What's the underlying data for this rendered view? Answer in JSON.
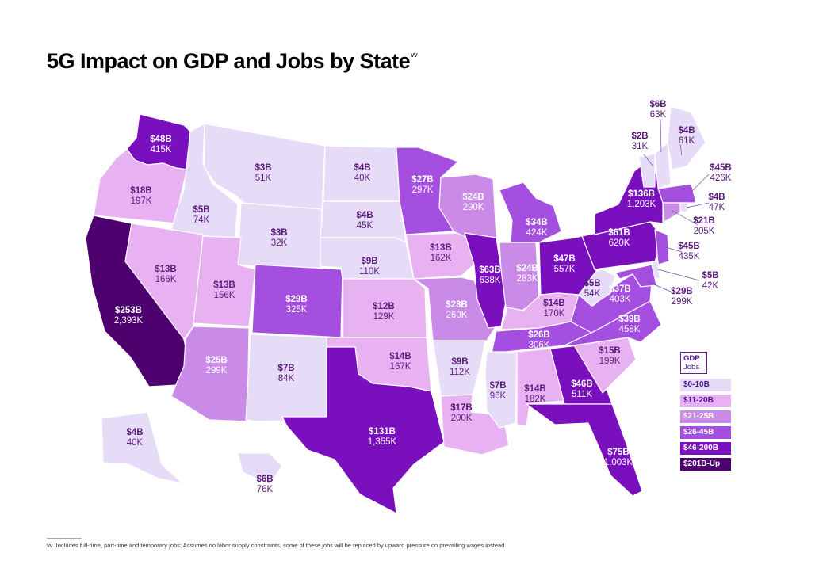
{
  "title": "5G Impact on GDP and Jobs by State",
  "title_sup": "vv",
  "legend": {
    "header_gdp": "GDP",
    "header_jobs": "Jobs",
    "items": [
      {
        "label": "$0-10B",
        "color": "#e6dcf8",
        "text_color": "#4a148c"
      },
      {
        "label": "$11-20B",
        "color": "#e8b2f2",
        "text_color": "#4a148c"
      },
      {
        "label": "$21-25B",
        "color": "#c98ae8",
        "text_color": "#ffffff"
      },
      {
        "label": "$26-45B",
        "color": "#a54fe0",
        "text_color": "#ffffff"
      },
      {
        "label": "$46-200B",
        "color": "#7a0fbe",
        "text_color": "#ffffff"
      },
      {
        "label": "$201B-Up",
        "color": "#4e006e",
        "text_color": "#ffffff"
      }
    ]
  },
  "states": {
    "WA": {
      "gdp": "$48B",
      "jobs": "415K",
      "tier": 4
    },
    "OR": {
      "gdp": "$18B",
      "jobs": "197K",
      "tier": 1
    },
    "CA": {
      "gdp": "$253B",
      "jobs": "2,393K",
      "tier": 5
    },
    "ID": {
      "gdp": "$5B",
      "jobs": "74K",
      "tier": 0
    },
    "NV": {
      "gdp": "$13B",
      "jobs": "166K",
      "tier": 1
    },
    "MT": {
      "gdp": "$3B",
      "jobs": "51K",
      "tier": 0
    },
    "WY": {
      "gdp": "$3B",
      "jobs": "32K",
      "tier": 0
    },
    "UT": {
      "gdp": "$13B",
      "jobs": "156K",
      "tier": 1
    },
    "AZ": {
      "gdp": "$25B",
      "jobs": "299K",
      "tier": 2
    },
    "CO": {
      "gdp": "$29B",
      "jobs": "325K",
      "tier": 3
    },
    "NM": {
      "gdp": "$7B",
      "jobs": "84K",
      "tier": 0
    },
    "ND": {
      "gdp": "$4B",
      "jobs": "40K",
      "tier": 0
    },
    "SD": {
      "gdp": "$4B",
      "jobs": "45K",
      "tier": 0
    },
    "NE": {
      "gdp": "$9B",
      "jobs": "110K",
      "tier": 0
    },
    "KS": {
      "gdp": "$12B",
      "jobs": "129K",
      "tier": 1
    },
    "OK": {
      "gdp": "$14B",
      "jobs": "167K",
      "tier": 1
    },
    "TX": {
      "gdp": "$131B",
      "jobs": "1,355K",
      "tier": 4
    },
    "MN": {
      "gdp": "$27B",
      "jobs": "297K",
      "tier": 3
    },
    "IA": {
      "gdp": "$13B",
      "jobs": "162K",
      "tier": 1
    },
    "MO": {
      "gdp": "$23B",
      "jobs": "260K",
      "tier": 2
    },
    "AR": {
      "gdp": "$9B",
      "jobs": "112K",
      "tier": 0
    },
    "LA": {
      "gdp": "$17B",
      "jobs": "200K",
      "tier": 1
    },
    "WI": {
      "gdp": "$24B",
      "jobs": "290K",
      "tier": 2
    },
    "IL": {
      "gdp": "$63B",
      "jobs": "638K",
      "tier": 4
    },
    "MI": {
      "gdp": "$34B",
      "jobs": "424K",
      "tier": 3
    },
    "IN": {
      "gdp": "$24B",
      "jobs": "283K",
      "tier": 2
    },
    "OH": {
      "gdp": "$47B",
      "jobs": "557K",
      "tier": 4
    },
    "KY": {
      "gdp": "$14B",
      "jobs": "170K",
      "tier": 1
    },
    "TN": {
      "gdp": "$26B",
      "jobs": "306K",
      "tier": 3
    },
    "MS": {
      "gdp": "$7B",
      "jobs": "96K",
      "tier": 0
    },
    "AL": {
      "gdp": "$14B",
      "jobs": "182K",
      "tier": 1
    },
    "GA": {
      "gdp": "$46B",
      "jobs": "511K",
      "tier": 4
    },
    "FL": {
      "gdp": "$75B",
      "jobs": "1,003K",
      "tier": 4
    },
    "SC": {
      "gdp": "$15B",
      "jobs": "199K",
      "tier": 1
    },
    "NC": {
      "gdp": "$39B",
      "jobs": "458K",
      "tier": 3
    },
    "VA": {
      "gdp": "$37B",
      "jobs": "403K",
      "tier": 3
    },
    "WV": {
      "gdp": "$5B",
      "jobs": "54K",
      "tier": 0
    },
    "PA": {
      "gdp": "$61B",
      "jobs": "620K",
      "tier": 4
    },
    "NY": {
      "gdp": "$136B",
      "jobs": "1,203K",
      "tier": 4
    },
    "VT": {
      "gdp": "$2B",
      "jobs": "31K",
      "tier": 0
    },
    "NH": {
      "gdp": "$6B",
      "jobs": "63K",
      "tier": 0
    },
    "ME": {
      "gdp": "$4B",
      "jobs": "61K",
      "tier": 0
    },
    "MA": {
      "gdp": "$45B",
      "jobs": "426K",
      "tier": 3
    },
    "RI": {
      "gdp": "$4B",
      "jobs": "47K",
      "tier": 0
    },
    "CT": {
      "gdp": "$21B",
      "jobs": "205K",
      "tier": 2
    },
    "NJ": {
      "gdp": "$45B",
      "jobs": "435K",
      "tier": 3
    },
    "DE": {
      "gdp": "$5B",
      "jobs": "42K",
      "tier": 0
    },
    "MD": {
      "gdp": "$29B",
      "jobs": "299K",
      "tier": 3
    },
    "AK": {
      "gdp": "$4B",
      "jobs": "40K",
      "tier": 0
    },
    "HI": {
      "gdp": "$6B",
      "jobs": "76K",
      "tier": 0
    }
  },
  "footnote": {
    "marker": "vv",
    "text": "Includes full-time, part-time and temporary jobs; Assumes no labor supply constraints, some of these jobs will be replaced by upward pressure on prevailing wages instead."
  }
}
